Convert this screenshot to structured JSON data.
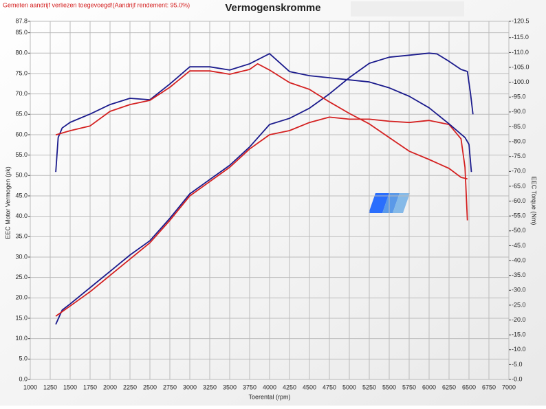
{
  "chart_data": {
    "type": "line",
    "title": "Vermogenskromme",
    "note": "Gemeten aandrijf verliezen toegevoegd!(Aandrijf rendement: 95.0%)",
    "xlabel": "Toerental (rpm)",
    "ylabel": "EEC Motor Vermogen (pk)",
    "y2label": "EEC Torque (Nm)",
    "grid": true,
    "xlim": [
      1000,
      7000
    ],
    "xticks": [
      1000,
      1250,
      1500,
      1750,
      2000,
      2250,
      2500,
      2750,
      3000,
      3250,
      3500,
      3750,
      4000,
      4250,
      4500,
      4750,
      5000,
      5250,
      5500,
      5750,
      6000,
      6250,
      6500,
      6750,
      7000
    ],
    "ylim": [
      0,
      87.8
    ],
    "yticks": [
      {
        "value": 0,
        "label": "0.0"
      },
      {
        "value": 5,
        "label": "5.0"
      },
      {
        "value": 10,
        "label": "10.0"
      },
      {
        "value": 15,
        "label": "15.0"
      },
      {
        "value": 20,
        "label": "20.0"
      },
      {
        "value": 25,
        "label": "25.0"
      },
      {
        "value": 30,
        "label": "30.0"
      },
      {
        "value": 35,
        "label": "35.0"
      },
      {
        "value": 40,
        "label": "40.0"
      },
      {
        "value": 45,
        "label": "45.0"
      },
      {
        "value": 50,
        "label": "50.0"
      },
      {
        "value": 55,
        "label": "55.0"
      },
      {
        "value": 60,
        "label": "60.0"
      },
      {
        "value": 65,
        "label": "65.0"
      },
      {
        "value": 70,
        "label": "70.0"
      },
      {
        "value": 75,
        "label": "75.0"
      },
      {
        "value": 80,
        "label": "80.0"
      },
      {
        "value": 85,
        "label": "85.0"
      },
      87.8
    ],
    "y2lim": [
      0,
      120.5
    ],
    "y2ticks": [
      {
        "value": 0,
        "label": "-0.0"
      },
      {
        "value": 5,
        "label": "-5.0"
      },
      {
        "value": 10,
        "label": "-10.0"
      },
      {
        "value": 15,
        "label": "-15.0"
      },
      {
        "value": 20,
        "label": "-20.0"
      },
      {
        "value": 25,
        "label": "-25.0"
      },
      {
        "value": 30,
        "label": "-30.0"
      },
      {
        "value": 35,
        "label": "-35.0"
      },
      {
        "value": 40,
        "label": "-40.0"
      },
      {
        "value": 45,
        "label": "-45.0"
      },
      {
        "value": 50,
        "label": "-50.0"
      },
      {
        "value": 55,
        "label": "-55.0"
      },
      {
        "value": 60,
        "label": "-60.0"
      },
      {
        "value": 65,
        "label": "-65.0"
      },
      {
        "value": 70,
        "label": "-70.0"
      },
      {
        "value": 75,
        "label": "-75.0"
      },
      {
        "value": 80,
        "label": "-80.0"
      },
      {
        "value": 85,
        "label": "-85.0"
      },
      {
        "value": 90,
        "label": "-90.0"
      },
      {
        "value": 95,
        "label": "-95.0"
      },
      {
        "value": 100,
        "label": "-100.0"
      },
      {
        "value": 105,
        "label": "-105.0"
      },
      {
        "value": 110,
        "label": "-110.0"
      },
      {
        "value": 115,
        "label": "-115.0"
      },
      {
        "value": 120.5,
        "label": "-120.5"
      }
    ],
    "series": [
      {
        "color": "#1a1a8c",
        "x": [
          1320,
          1400,
          1500,
          1750,
          2000,
          2250,
          2500,
          2750,
          3000,
          3250,
          3500,
          3750,
          4000,
          4250,
          4500,
          4750,
          5000,
          5250,
          5500,
          5750,
          6000,
          6100,
          6250,
          6400,
          6480,
          6520,
          6550
        ],
        "values": [
          13.5,
          17,
          18.5,
          22.5,
          26.5,
          30.5,
          34,
          39.5,
          45.5,
          49,
          52.5,
          57,
          62.5,
          64,
          66.5,
          70,
          74,
          77.5,
          79,
          79.5,
          80,
          79.8,
          78,
          76,
          75.5,
          70,
          65
        ]
      },
      {
        "color": "#d42020",
        "x": [
          1320,
          1500,
          1750,
          2000,
          2250,
          2500,
          2750,
          3000,
          3250,
          3500,
          3750,
          4000,
          4250,
          4500,
          4750,
          5000,
          5250,
          5500,
          5750,
          6000,
          6250,
          6400,
          6450,
          6480
        ],
        "values": [
          15.5,
          18,
          21.5,
          25.5,
          29.5,
          33.5,
          39,
          45,
          48.5,
          52,
          56.5,
          60,
          61,
          63,
          64.3,
          63.8,
          63.8,
          63.3,
          63,
          63.5,
          62.5,
          59,
          52,
          39
        ]
      },
      {
        "color": "#1a1a8c",
        "axis": "y2",
        "x": [
          1320,
          1350,
          1400,
          1500,
          1750,
          2000,
          2250,
          2500,
          2750,
          3000,
          3250,
          3500,
          3750,
          4000,
          4250,
          4500,
          4750,
          5000,
          5250,
          5500,
          5750,
          6000,
          6250,
          6450,
          6500,
          6530
        ],
        "values": [
          69.8,
          81.4,
          84.6,
          86.5,
          89.3,
          92.5,
          94.6,
          94.1,
          99.4,
          105.2,
          105.2,
          104.1,
          106.2,
          109.6,
          103.6,
          102.2,
          101.5,
          100.8,
          100.1,
          98.1,
          95.3,
          91.4,
          86,
          81.4,
          79.1,
          69.8
        ]
      },
      {
        "color": "#d42020",
        "axis": "y2",
        "x": [
          1320,
          1500,
          1750,
          2000,
          2250,
          2500,
          2750,
          3000,
          3250,
          3500,
          3750,
          3850,
          4000,
          4250,
          4500,
          4750,
          5000,
          5250,
          5500,
          5750,
          6000,
          6250,
          6400,
          6480
        ],
        "values": [
          82.3,
          83.7,
          85.3,
          90.2,
          92.5,
          93.9,
          98.3,
          103.8,
          103.8,
          102.7,
          104.3,
          106.2,
          104.1,
          99.9,
          97.6,
          93.4,
          89.5,
          86,
          81.4,
          76.8,
          74,
          71,
          68,
          67.5
        ]
      }
    ]
  }
}
